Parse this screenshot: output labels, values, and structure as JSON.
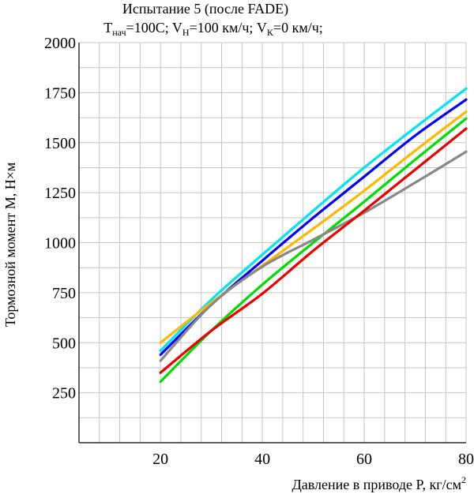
{
  "chart_data": {
    "type": "line",
    "title": "Испытание 5 (после FADE)",
    "subtitle": {
      "t_sym": "T",
      "t_sub": "нач",
      "t_val": "=100C; ",
      "vh_sym": "V",
      "vh_sub": "Н",
      "vh_val": "=100 км/ч; ",
      "vk_sym": "V",
      "vk_sub": "К",
      "vk_val": "=0 км/ч;"
    },
    "xlabel": "Давление в приводе P, кг/см",
    "xlabel_sup": "2",
    "ylabel": "Тормозной момент M, Н×м",
    "xlim": [
      4,
      80
    ],
    "ylim": [
      0,
      2000
    ],
    "x_ticks": [
      20,
      40,
      60,
      80
    ],
    "y_ticks": [
      250,
      500,
      750,
      1000,
      1250,
      1500,
      1750,
      2000
    ],
    "x_grid_step": 4,
    "y_grid_step": 125,
    "grid": true,
    "series": [
      {
        "name": "cyan",
        "color": "#00e5ee",
        "x": [
          20,
          30,
          40,
          50,
          60,
          70,
          80
        ],
        "y": [
          460,
          715,
          940,
          1160,
          1375,
          1575,
          1770
        ]
      },
      {
        "name": "blue",
        "color": "#0000ff",
        "x": [
          20,
          30,
          40,
          50,
          60,
          70,
          80
        ],
        "y": [
          440,
          690,
          910,
          1125,
          1330,
          1535,
          1715
        ]
      },
      {
        "name": "orange",
        "color": "#ffb800",
        "x": [
          20,
          30,
          40,
          50,
          60,
          70,
          80
        ],
        "y": [
          500,
          700,
          885,
          1070,
          1260,
          1460,
          1655
        ]
      },
      {
        "name": "green",
        "color": "#00dd00",
        "x": [
          20,
          30,
          40,
          50,
          60,
          70,
          80
        ],
        "y": [
          305,
          560,
          790,
          1000,
          1205,
          1415,
          1620
        ]
      },
      {
        "name": "gray",
        "color": "#888888",
        "x": [
          20,
          30,
          40,
          50,
          60,
          70,
          80
        ],
        "y": [
          410,
          690,
          880,
          1015,
          1150,
          1300,
          1455
        ]
      },
      {
        "name": "red",
        "color": "#ee0000",
        "x": [
          20,
          30,
          40,
          50,
          60,
          70,
          80
        ],
        "y": [
          350,
          560,
          745,
          960,
          1160,
          1365,
          1570
        ]
      }
    ]
  }
}
